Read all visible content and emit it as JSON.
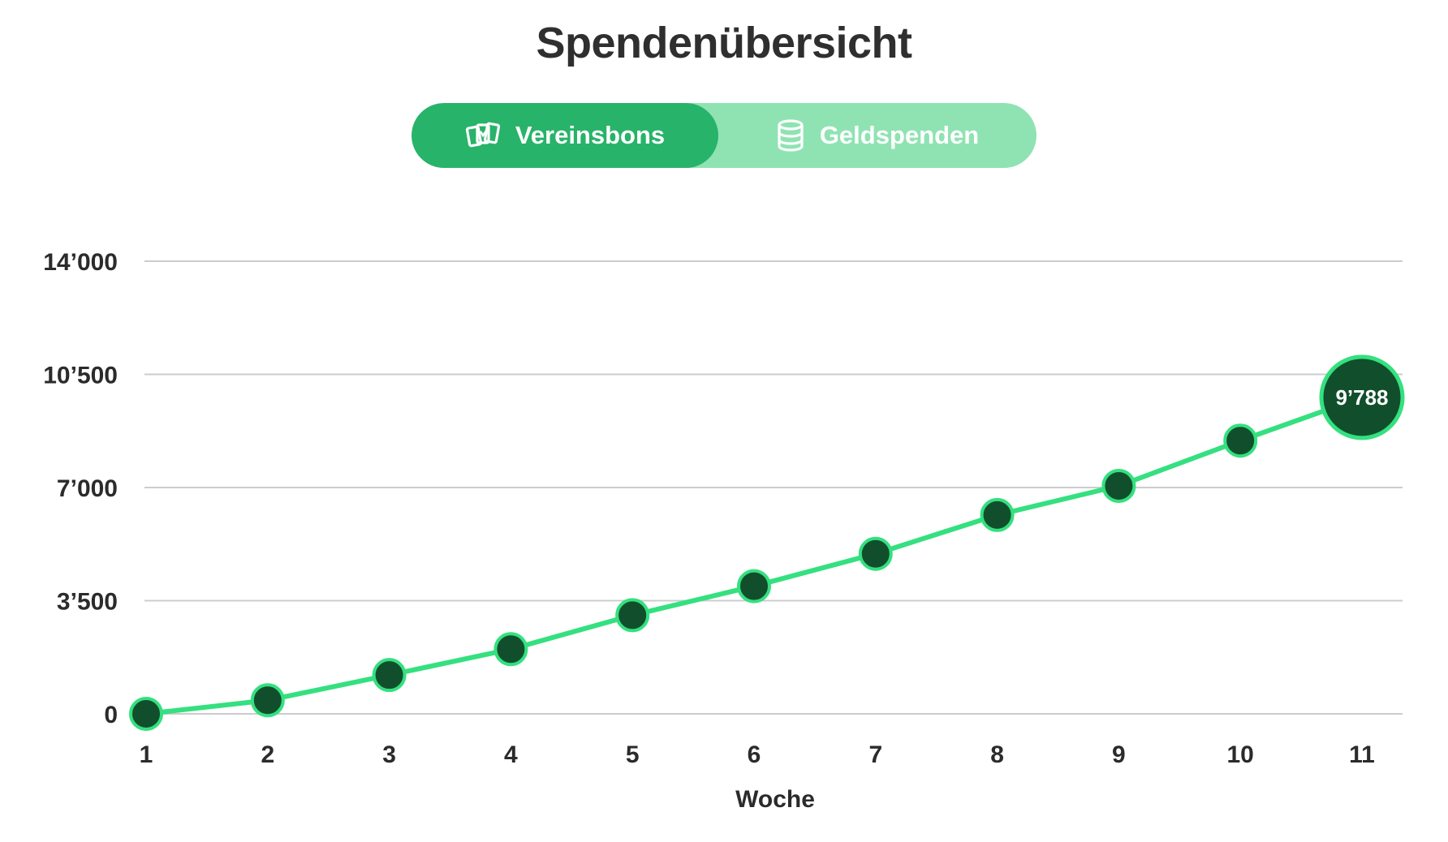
{
  "header": {
    "title": "Spendenübersicht"
  },
  "toggle": {
    "active_label": "Vereinsbons",
    "active_icon": "vouchers-icon",
    "inactive_label": "Geldspenden",
    "inactive_icon": "coins-stack-icon"
  },
  "colors": {
    "line": "#34e07f",
    "point_fill": "#114f2c",
    "point_stroke": "#34e07f",
    "grid": "#cccccc",
    "toggle_active": "#28b36a",
    "toggle_inactive": "#8fe3b2"
  },
  "chart_data": {
    "type": "line",
    "title": "",
    "xlabel": "Woche",
    "ylabel": "",
    "x": [
      1,
      2,
      3,
      4,
      5,
      6,
      7,
      8,
      9,
      10,
      11
    ],
    "x_tick_labels": [
      "1",
      "2",
      "3",
      "4",
      "5",
      "6",
      "7",
      "8",
      "9",
      "10",
      "11"
    ],
    "series": [
      {
        "values": [
          0,
          420,
          1200,
          2000,
          3050,
          3950,
          4950,
          6150,
          7050,
          8450,
          9788
        ]
      }
    ],
    "ylim": [
      0,
      14000
    ],
    "y_ticks": [
      0,
      3500,
      7000,
      10500,
      14000
    ],
    "y_tick_labels": [
      "0",
      "3’500",
      "7’000",
      "10’500",
      "14’000"
    ],
    "highlight": {
      "x": 11,
      "value": 9788,
      "label": "9’788"
    },
    "grid": true,
    "legend": "none"
  }
}
